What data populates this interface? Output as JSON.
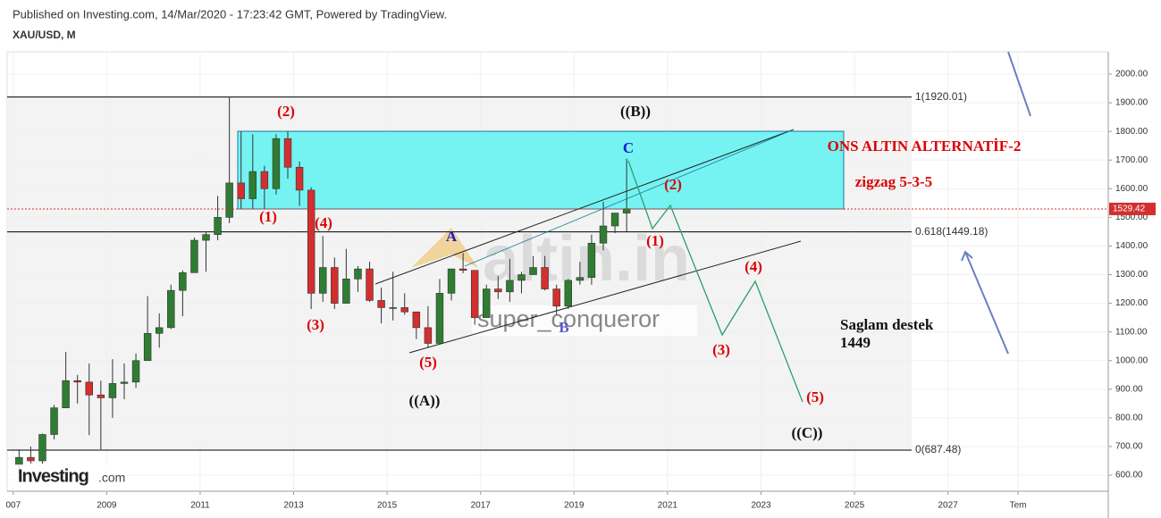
{
  "header": {
    "published": "Published on Investing.com, 14/Mar/2020 - 17:23:42 GMT, Powered by TradingView.",
    "symbol": "XAU/USD, M"
  },
  "chart_data": {
    "type": "candlestick",
    "x": [
      2007.0,
      2007.25,
      2007.5,
      2007.75,
      2008.0,
      2008.25,
      2008.5,
      2008.75,
      2009.0,
      2009.25,
      2009.5,
      2009.75,
      2010.0,
      2010.25,
      2010.5,
      2010.75,
      2011.0,
      2011.25,
      2011.5,
      2011.75,
      2012.0,
      2012.25,
      2012.5,
      2012.75,
      2013.0,
      2013.25,
      2013.5,
      2013.75,
      2014.0,
      2014.25,
      2014.5,
      2014.75,
      2015.0,
      2015.25,
      2015.5,
      2015.75,
      2016.0,
      2016.25,
      2016.5,
      2016.75,
      2017.0,
      2017.25,
      2017.5,
      2017.75,
      2018.0,
      2018.25,
      2018.5,
      2018.75,
      2019.0,
      2019.25,
      2019.5,
      2019.75,
      2020.0
    ],
    "open": [
      635,
      662,
      650,
      742,
      835,
      930,
      925,
      880,
      870,
      920,
      925,
      1000,
      1095,
      1115,
      1245,
      1307,
      1420,
      1440,
      1500,
      1620,
      1565,
      1660,
      1600,
      1775,
      1675,
      1595,
      1235,
      1325,
      1200,
      1285,
      1320,
      1210,
      1185,
      1185,
      1170,
      1115,
      1060,
      1235,
      1320,
      1315,
      1150,
      1250,
      1240,
      1280,
      1300,
      1325,
      1250,
      1190,
      1280,
      1290,
      1410,
      1470,
      1515
    ],
    "high": [
      690,
      700,
      745,
      845,
      1030,
      950,
      990,
      930,
      1005,
      990,
      1025,
      1225,
      1165,
      1265,
      1315,
      1430,
      1450,
      1575,
      1920,
      1800,
      1790,
      1680,
      1790,
      1800,
      1695,
      1605,
      1435,
      1360,
      1390,
      1330,
      1345,
      1255,
      1310,
      1235,
      1170,
      1190,
      1285,
      1320,
      1375,
      1310,
      1265,
      1295,
      1355,
      1310,
      1365,
      1365,
      1265,
      1285,
      1345,
      1440,
      1555,
      1515,
      1705
    ],
    "low": [
      605,
      640,
      640,
      725,
      835,
      850,
      740,
      690,
      800,
      865,
      905,
      1000,
      1045,
      1110,
      1155,
      1310,
      1310,
      1420,
      1480,
      1530,
      1530,
      1530,
      1580,
      1635,
      1540,
      1180,
      1205,
      1180,
      1200,
      1240,
      1205,
      1130,
      1140,
      1160,
      1075,
      1045,
      1060,
      1210,
      1305,
      1125,
      1150,
      1215,
      1205,
      1235,
      1300,
      1245,
      1160,
      1180,
      1265,
      1265,
      1385,
      1445,
      1450
    ],
    "close": [
      662,
      650,
      742,
      835,
      930,
      925,
      880,
      870,
      920,
      925,
      1000,
      1095,
      1115,
      1245,
      1307,
      1420,
      1440,
      1500,
      1620,
      1565,
      1660,
      1600,
      1775,
      1675,
      1595,
      1235,
      1325,
      1200,
      1285,
      1320,
      1210,
      1185,
      1185,
      1170,
      1115,
      1060,
      1235,
      1320,
      1315,
      1150,
      1250,
      1240,
      1280,
      1300,
      1325,
      1250,
      1190,
      1280,
      1290,
      1410,
      1470,
      1515,
      1530
    ],
    "up_color": "#2e7d32",
    "down_color": "#d32f2f",
    "xlim": [
      2006.87,
      2030.43
    ],
    "xticks": [
      {
        "value": 2007,
        "label": "007"
      },
      2009,
      2011,
      2013,
      2015,
      2017,
      2019,
      2021,
      2023,
      2025,
      2027,
      {
        "value": 2028.5,
        "label": "Tem"
      }
    ],
    "ylim": [
      544,
      2078
    ],
    "yticks": [
      {
        "value": 600,
        "label": "600.00"
      },
      {
        "value": 700,
        "label": "700.00"
      },
      {
        "value": 800,
        "label": "800.00"
      },
      {
        "value": 900,
        "label": "900.00"
      },
      {
        "value": 1000,
        "label": "1000.00"
      },
      {
        "value": 1100,
        "label": "1100.00"
      },
      {
        "value": 1200,
        "label": "1200.00"
      },
      {
        "value": 1300,
        "label": "1300.00"
      },
      {
        "value": 1400,
        "label": "1400.00"
      },
      {
        "value": 1500,
        "label": "1500.00"
      },
      {
        "value": 1600,
        "label": "1600.00"
      },
      {
        "value": 1700,
        "label": "1700.00"
      },
      {
        "value": 1800,
        "label": "1800.00"
      },
      {
        "value": 1900,
        "label": "1900.00"
      },
      {
        "value": 2000,
        "label": "2000.00"
      }
    ],
    "grid": true,
    "levels": [
      {
        "value": 1920.01,
        "label": "1(1920.01)"
      },
      {
        "value": 1449.18,
        "label": "0.618(1449.18)"
      },
      {
        "value": 687.48,
        "label": "0(687.48)"
      }
    ],
    "last_price": {
      "value": 1529.42,
      "label": "1529.42"
    },
    "annotations": [
      "(2)",
      "((B))",
      "C",
      "ONS ALTIN ALTERNATİF-2",
      "zigzag 5-3-5",
      "(2)",
      "(1)",
      "(4)",
      "A",
      "(1)",
      "(4)",
      "(3)",
      "B",
      "(3)",
      "Saglam destek",
      "1449",
      "(5)",
      "((A))",
      "(5)",
      "((C))"
    ],
    "watermark": [
      "altin.in",
      "super_conqueror",
      "Investing",
      ".com"
    ]
  }
}
